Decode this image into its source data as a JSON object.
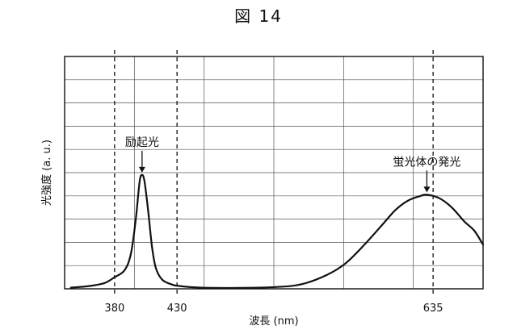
{
  "figure": {
    "title": "図 14"
  },
  "chart_data": {
    "type": "line",
    "xlabel": "波長 (nm)",
    "ylabel": "光強度 (a. u.)",
    "xlim": [
      340,
      675
    ],
    "ylim": [
      0,
      10
    ],
    "grid": true,
    "x_ticks": [
      {
        "value": 380,
        "label": "380"
      },
      {
        "value": 430,
        "label": "430"
      },
      {
        "value": 635,
        "label": "635"
      }
    ],
    "reference_lines": [
      380,
      430,
      635
    ],
    "series": [
      {
        "values": [
          [
            345,
            0.05
          ],
          [
            360,
            0.12
          ],
          [
            372,
            0.25
          ],
          [
            380,
            0.5
          ],
          [
            388,
            0.8
          ],
          [
            393,
            1.5
          ],
          [
            397,
            3.0
          ],
          [
            400,
            4.6
          ],
          [
            402,
            4.9
          ],
          [
            404,
            4.6
          ],
          [
            407,
            3.3
          ],
          [
            410,
            1.8
          ],
          [
            413,
            0.9
          ],
          [
            418,
            0.4
          ],
          [
            425,
            0.2
          ],
          [
            432,
            0.12
          ],
          [
            450,
            0.05
          ],
          [
            480,
            0.04
          ],
          [
            510,
            0.08
          ],
          [
            530,
            0.2
          ],
          [
            550,
            0.6
          ],
          [
            565,
            1.1
          ],
          [
            580,
            1.9
          ],
          [
            595,
            2.8
          ],
          [
            605,
            3.4
          ],
          [
            615,
            3.8
          ],
          [
            625,
            4.0
          ],
          [
            630,
            4.05
          ],
          [
            640,
            3.9
          ],
          [
            650,
            3.5
          ],
          [
            660,
            2.9
          ],
          [
            668,
            2.5
          ],
          [
            675,
            1.9
          ]
        ]
      }
    ],
    "annotations": [
      {
        "text": "励起光",
        "x": 402,
        "y": 4.9
      },
      {
        "text": "蛍光体の発光",
        "x": 630,
        "y": 4.05
      }
    ]
  }
}
